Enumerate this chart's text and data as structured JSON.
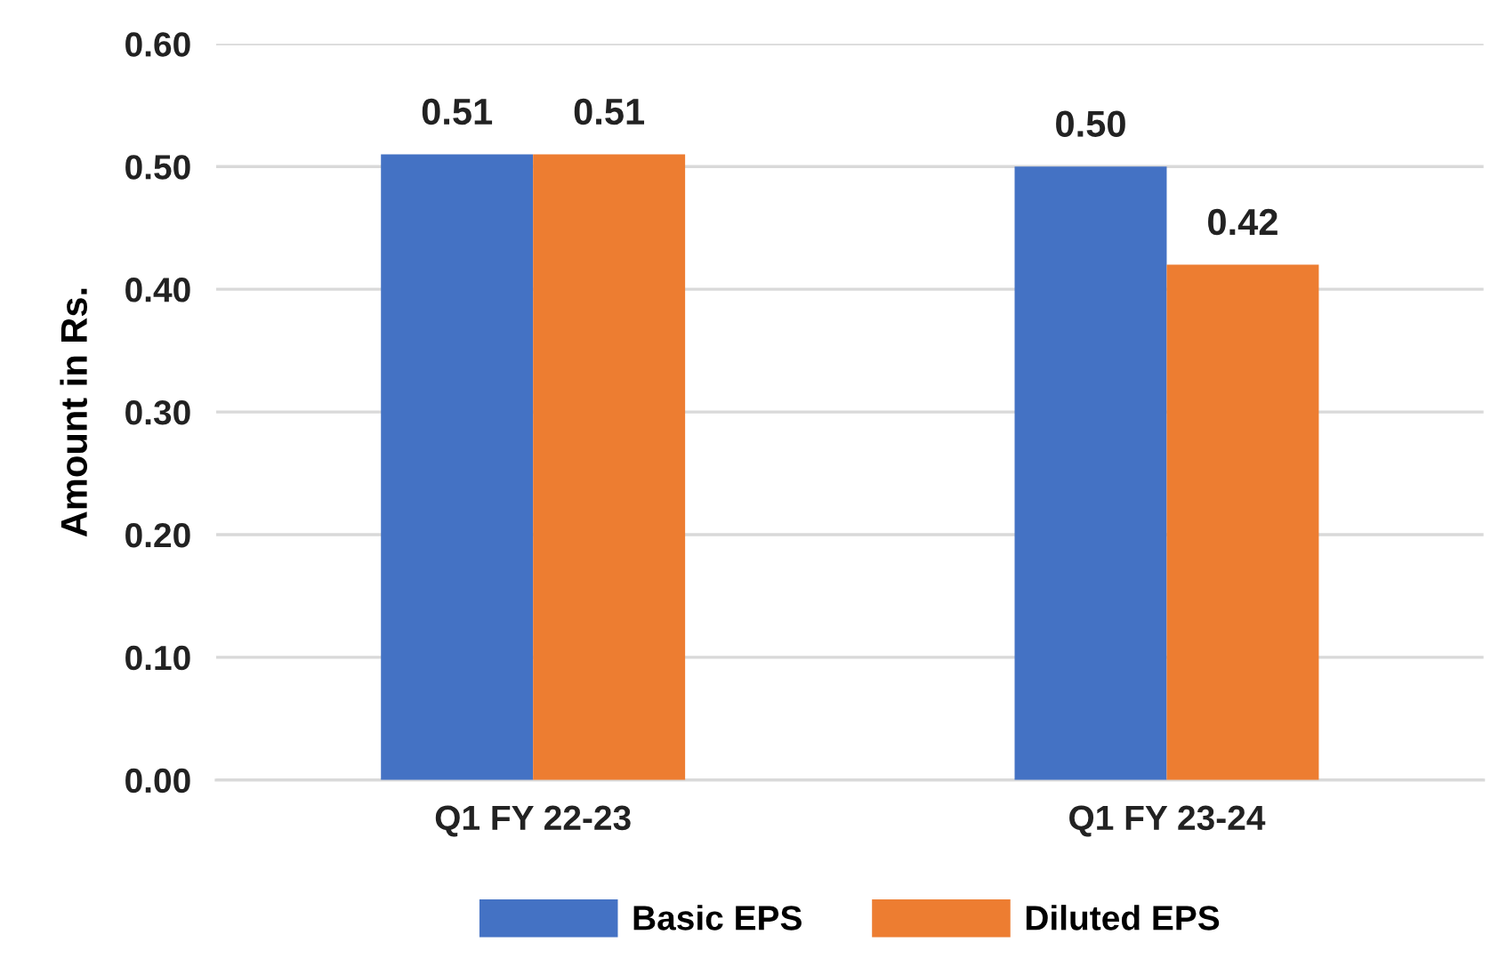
{
  "chart_data": {
    "type": "bar",
    "ylabel": "Amount in Rs.",
    "categories": [
      "Q1 FY 22-23",
      "Q1 FY 23-24"
    ],
    "series": [
      {
        "name": "Basic EPS",
        "color": "#4472c4",
        "values": [
          0.51,
          0.5
        ],
        "value_labels": [
          "0.51",
          "0.50"
        ]
      },
      {
        "name": "Diluted EPS",
        "color": "#ed7d31",
        "values": [
          0.51,
          0.42
        ],
        "value_labels": [
          "0.51",
          "0.42"
        ]
      }
    ],
    "ylim": [
      0,
      0.6
    ],
    "yticks": [
      {
        "value": 0,
        "label": "0.00"
      },
      {
        "value": 0.1,
        "label": "0.10"
      },
      {
        "value": 0.2,
        "label": "0.20"
      },
      {
        "value": 0.3,
        "label": "0.30"
      },
      {
        "value": 0.4,
        "label": "0.40"
      },
      {
        "value": 0.5,
        "label": "0.50"
      },
      {
        "value": 0.6,
        "label": "0.60"
      }
    ],
    "grid": "y",
    "legend": "bottom"
  }
}
